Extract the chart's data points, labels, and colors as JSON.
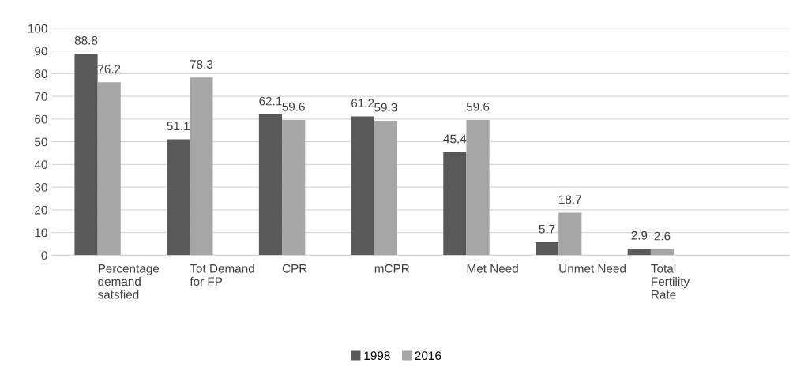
{
  "chart_data": {
    "type": "bar",
    "categories": [
      "Percentage demand satsfied",
      "Tot Demand for FP",
      "CPR",
      "mCPR",
      "Met Need",
      "Unmet Need",
      "Total Fertility Rate",
      null
    ],
    "series": [
      {
        "name": "1998",
        "color": "#595959",
        "values": [
          88.8,
          51.1,
          62.1,
          61.2,
          45.4,
          5.7,
          2.9,
          null
        ]
      },
      {
        "name": "2016",
        "color": "#a6a6a6",
        "values": [
          76.2,
          78.3,
          59.6,
          59.3,
          59.6,
          18.7,
          2.6,
          null
        ]
      }
    ],
    "ylim": [
      0,
      100
    ],
    "yticks": [
      0,
      10,
      20,
      30,
      40,
      50,
      60,
      70,
      80,
      90,
      100
    ],
    "grid": "y",
    "legend": "bottom",
    "data_labels": true
  }
}
